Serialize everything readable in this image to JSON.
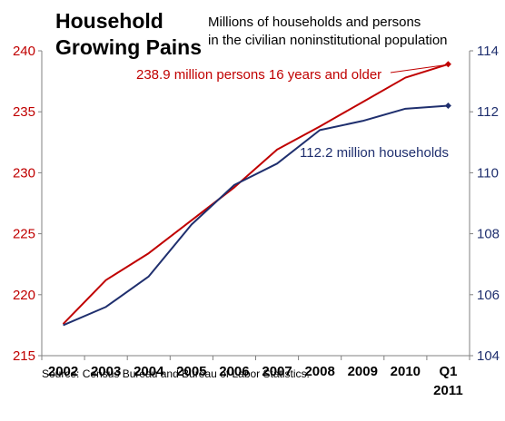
{
  "chart_data": {
    "type": "line",
    "title": [
      "Household",
      "Growing Pains"
    ],
    "subtitle": [
      "Millions of households and  persons",
      "in the civilian noninstitutional population"
    ],
    "categories": [
      "2002",
      "2003",
      "2004",
      "2005",
      "2006",
      "2007",
      "2008",
      "2009",
      "2010",
      "Q1"
    ],
    "category_sublabels": [
      "",
      "",
      "",
      "",
      "",
      "",
      "",
      "",
      "",
      "2011"
    ],
    "y_left": {
      "ticks": [
        "215",
        "220",
        "225",
        "230",
        "235",
        "240"
      ],
      "lim": [
        215,
        240
      ],
      "color": "#c00000"
    },
    "y_right": {
      "ticks": [
        "104",
        "106",
        "108",
        "110",
        "112",
        "114"
      ],
      "lim": [
        104,
        114
      ],
      "color": "#1f2f6e"
    },
    "series": [
      {
        "name": "238.9 million persons 16 years and older",
        "axis": "left",
        "color": "#c00000",
        "values": [
          217.6,
          221.2,
          223.4,
          226.1,
          228.8,
          231.9,
          233.8,
          235.8,
          237.8,
          238.9
        ]
      },
      {
        "name": "112.2 million households",
        "axis": "right",
        "color": "#1f2f6e",
        "values": [
          105.0,
          105.6,
          106.6,
          108.3,
          109.6,
          110.3,
          111.4,
          111.7,
          112.1,
          112.2
        ]
      }
    ],
    "grid": false,
    "source": "Source:  Census Bureau and Bureau of Labor Statistics."
  }
}
